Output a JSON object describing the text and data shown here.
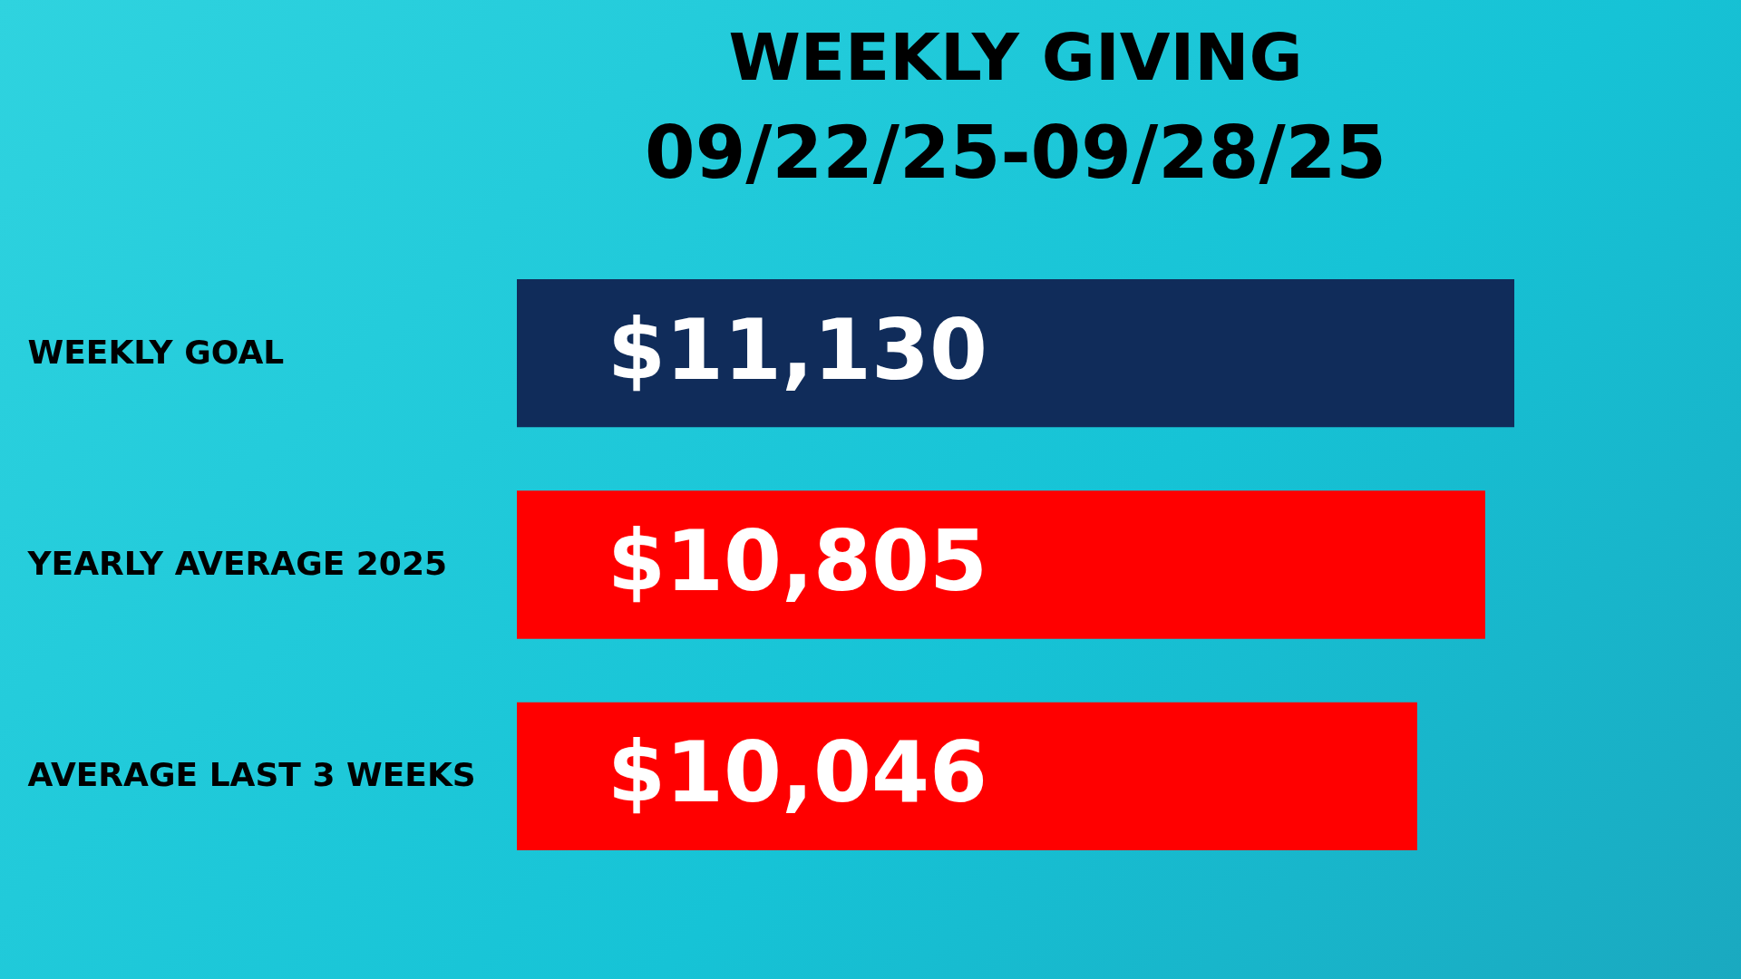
{
  "chart_data": {
    "type": "bar",
    "orientation": "horizontal",
    "title": "WEEKLY GIVING",
    "subtitle": "09/22/25-09/28/25",
    "categories": [
      "WEEKLY GOAL",
      "YEARLY AVERAGE 2025",
      "AVERAGE LAST 3 WEEKS"
    ],
    "values": [
      11130,
      10805,
      10046
    ],
    "colors": [
      "#102c5a",
      "#ff0000",
      "#ff0000"
    ],
    "value_labels": [
      "$11,130",
      "$10,805",
      "$10,046"
    ],
    "tick_labels": "y",
    "grid": false,
    "legend": false
  }
}
